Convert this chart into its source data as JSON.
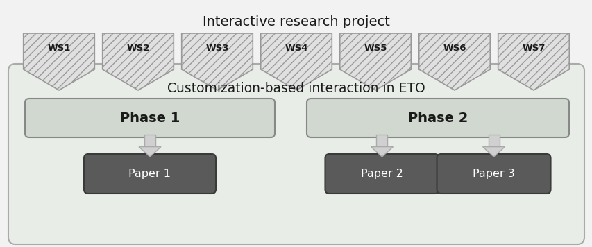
{
  "fig_width": 8.54,
  "fig_height": 3.56,
  "dpi": 100,
  "bg_color": "#ffffff",
  "outer_box_fill": "#f2f2f2",
  "outer_box_edge": "#aaaaaa",
  "inner_box_fill": "#e8ede8",
  "inner_box_edge": "#aaaaaa",
  "ws_labels": [
    "WS1",
    "WS2",
    "WS3",
    "WS4",
    "WS5",
    "WS6",
    "WS7"
  ],
  "ws_arrow_fill": "#e0e0e0",
  "ws_arrow_hatch": "///",
  "ws_arrow_edge": "#999999",
  "title_outer": "Interactive research project",
  "title_inner": "Customization-based interaction in ETO",
  "phase1_label": "Phase 1",
  "phase2_label": "Phase 2",
  "phase_fill": "#d0d8d0",
  "phase_edge": "#888888",
  "paper_labels": [
    "Paper 1",
    "Paper 2",
    "Paper 3"
  ],
  "paper_fill": "#5a5a5a",
  "paper_edge": "#3a3a3a",
  "arrow_fill": "#d0d0d0",
  "arrow_edge": "#aaaaaa",
  "text_color": "#1a1a1a",
  "paper_text_color": "#ffffff",
  "ws_text_bold": true
}
